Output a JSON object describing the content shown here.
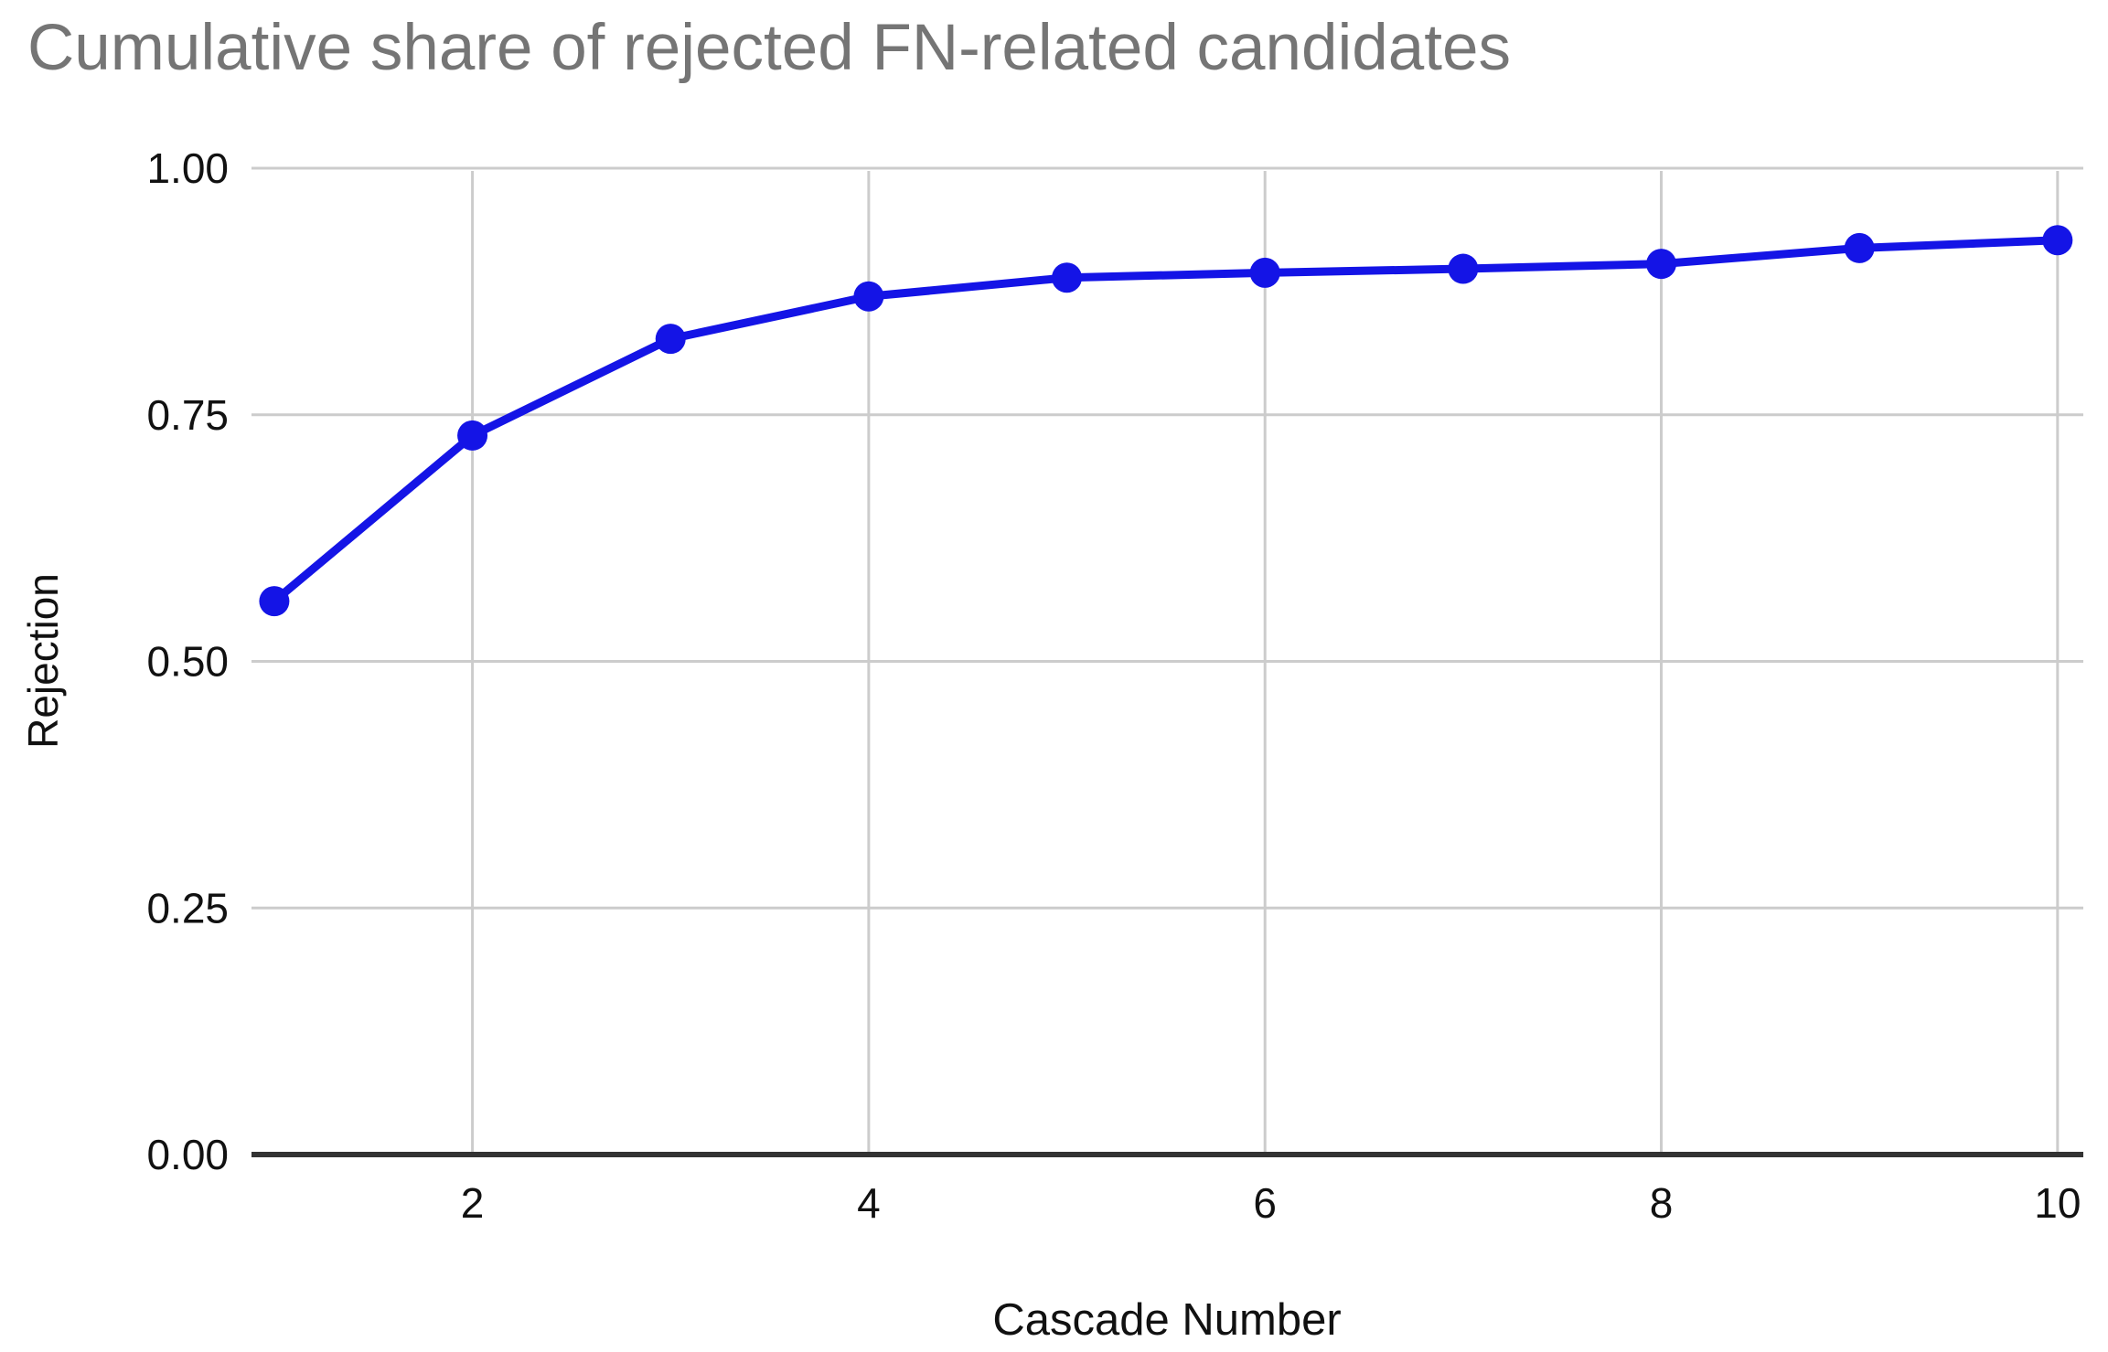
{
  "chart_data": {
    "type": "line",
    "title": "Cumulative share of rejected FN-related candidates",
    "xlabel": "Cascade Number",
    "ylabel": "Rejection",
    "x": [
      1,
      2,
      3,
      4,
      5,
      6,
      7,
      8,
      9,
      10
    ],
    "series": [
      {
        "name": "Rejection",
        "values": [
          0.561,
          0.729,
          0.827,
          0.87,
          0.889,
          0.894,
          0.898,
          0.903,
          0.919,
          0.927
        ]
      }
    ],
    "xlim": [
      0.885,
      10.13
    ],
    "ylim": [
      0,
      1
    ],
    "x_ticks": [
      2,
      4,
      6,
      8,
      10
    ],
    "y_ticks": [
      {
        "value": 0,
        "label": "0.00"
      },
      {
        "value": 0.25,
        "label": "0.25"
      },
      {
        "value": 0.5,
        "label": "0.50"
      },
      {
        "value": 0.75,
        "label": "0.75"
      },
      {
        "value": 1,
        "label": "1.00"
      }
    ],
    "grid": true,
    "legend_position": "none",
    "marker": "circle",
    "colors": {
      "line": "#1414e6",
      "grid": "#cccccc",
      "axis": "#333333",
      "title": "#757575",
      "tick": "#111111"
    }
  }
}
